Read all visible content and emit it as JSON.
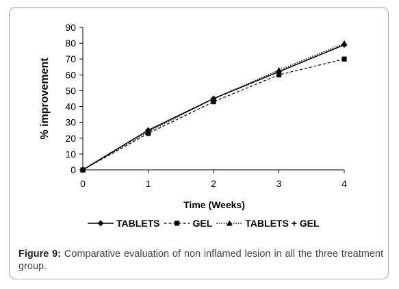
{
  "chart_data": {
    "type": "line",
    "xlabel": "Time (Weeks)",
    "ylabel": "% improvement",
    "x": [
      0,
      1,
      2,
      3,
      4
    ],
    "xticks": [
      "0",
      "1",
      "2",
      "3",
      "4"
    ],
    "ylim": [
      0,
      90
    ],
    "yticks": [
      "0",
      "10",
      "20",
      "30",
      "40",
      "50",
      "60",
      "70",
      "80",
      "90"
    ],
    "grid": false,
    "legend_position": "bottom",
    "series": [
      {
        "name": "TABLETS",
        "marker": "diamond",
        "line_style": "solid",
        "values": [
          0,
          25,
          45,
          62,
          79
        ]
      },
      {
        "name": "GEL",
        "marker": "square",
        "line_style": "dashed",
        "values": [
          0,
          23,
          43,
          60,
          70
        ]
      },
      {
        "name": "TABLETS + GEL",
        "marker": "triangle",
        "line_style": "dotted",
        "values": [
          0,
          24,
          45,
          63,
          80
        ]
      }
    ]
  },
  "caption": {
    "label": "Figure 9:",
    "text": " Comparative evaluation of non inflamed lesion in all the three treatment group."
  }
}
